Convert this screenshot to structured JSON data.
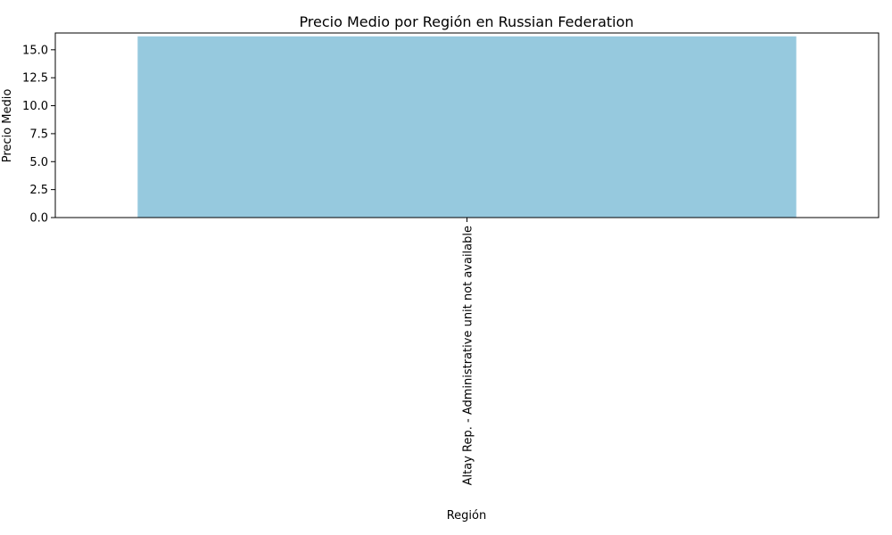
{
  "chart_data": {
    "type": "bar",
    "title": "Precio Medio por Región en Russian Federation",
    "xlabel": "Región",
    "ylabel": "Precio Medio",
    "categories": [
      "Altay Rep. - Administrative unit not available"
    ],
    "values": [
      16.2
    ],
    "ylim": [
      0,
      16.5
    ],
    "yticks": [
      "0.0",
      "2.5",
      "5.0",
      "7.5",
      "10.0",
      "12.5",
      "15.0"
    ],
    "bar_color": "#96c9de",
    "grid": false,
    "x_tick_rotation": "vertical"
  }
}
